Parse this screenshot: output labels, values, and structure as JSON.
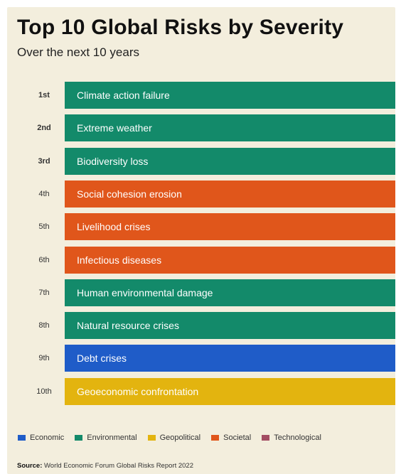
{
  "title": "Top 10 Global Risks by Severity",
  "subtitle": "Over the next 10 years",
  "category_colors": {
    "Economic": "#1f5cc8",
    "Environmental": "#138a6a",
    "Geopolitical": "#e3b40f",
    "Societal": "#e0561b",
    "Technological": "#a34d63"
  },
  "legend": [
    "Economic",
    "Environmental",
    "Geopolitical",
    "Societal",
    "Technological"
  ],
  "source": {
    "label": "Source:",
    "text": "World Economic Forum Global Risks Report 2022"
  },
  "chart_data": {
    "type": "table",
    "title": "Top 10 Global Risks by Severity",
    "subtitle": "Over the next 10 years",
    "rows": [
      {
        "rank": "1st",
        "risk": "Climate action failure",
        "category": "Environmental"
      },
      {
        "rank": "2nd",
        "risk": "Extreme weather",
        "category": "Environmental"
      },
      {
        "rank": "3rd",
        "risk": "Biodiversity loss",
        "category": "Environmental"
      },
      {
        "rank": "4th",
        "risk": "Social cohesion erosion",
        "category": "Societal"
      },
      {
        "rank": "5th",
        "risk": "Livelihood crises",
        "category": "Societal"
      },
      {
        "rank": "6th",
        "risk": "Infectious diseases",
        "category": "Societal"
      },
      {
        "rank": "7th",
        "risk": "Human environmental damage",
        "category": "Environmental"
      },
      {
        "rank": "8th",
        "risk": "Natural resource crises",
        "category": "Environmental"
      },
      {
        "rank": "9th",
        "risk": "Debt crises",
        "category": "Economic"
      },
      {
        "rank": "10th",
        "risk": "Geoeconomic confrontation",
        "category": "Geopolitical"
      }
    ],
    "legend_position": "bottom"
  }
}
